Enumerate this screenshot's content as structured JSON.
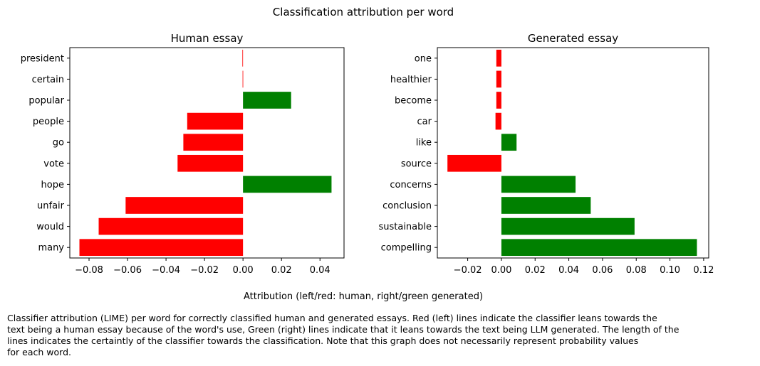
{
  "figure": {
    "suptitle": "Classification attribution per word",
    "xlabel": "Attribution (left/red: human, right/green generated)",
    "caption": "Classifier attribution (LIME) per word for correctly classified human and generated essays. Red (left) lines indicate the classifier leans towards the\ntext being a human essay because of the word's use, Green (right) lines indicate that it leans towards the text being LLM generated. The length of the\nlines indicates the certaintly of the classifier towards the classification. Note that this graph does not necessarily represent probability values\nfor each word.",
    "colors": {
      "negative": "#ff0000",
      "positive": "#008000"
    }
  },
  "chart_data": [
    {
      "type": "bar",
      "orientation": "horizontal",
      "title": "Human essay",
      "categories": [
        "president",
        "certain",
        "popular",
        "people",
        "go",
        "vote",
        "hope",
        "unfair",
        "would",
        "many"
      ],
      "values": [
        -0.0003,
        -0.0002,
        0.025,
        -0.029,
        -0.031,
        -0.034,
        0.046,
        -0.061,
        -0.075,
        -0.085
      ],
      "xlim": [
        -0.09,
        0.0525
      ],
      "xticks": [
        -0.08,
        -0.06,
        -0.04,
        -0.02,
        0.0,
        0.02,
        0.04
      ],
      "xtick_labels": [
        "−0.08",
        "−0.06",
        "−0.04",
        "−0.02",
        "0.00",
        "0.02",
        "0.04"
      ],
      "grid": false
    },
    {
      "type": "bar",
      "orientation": "horizontal",
      "title": "Generated essay",
      "categories": [
        "one",
        "healthier",
        "become",
        "car",
        "like",
        "source",
        "concerns",
        "conclusion",
        "sustainable",
        "compelling"
      ],
      "values": [
        -0.003,
        -0.003,
        -0.003,
        -0.0035,
        0.009,
        -0.032,
        0.044,
        0.053,
        0.079,
        0.116
      ],
      "xlim": [
        -0.038,
        0.123
      ],
      "xticks": [
        -0.02,
        0.0,
        0.02,
        0.04,
        0.06,
        0.08,
        0.1,
        0.12
      ],
      "xtick_labels": [
        "−0.02",
        "0.00",
        "0.02",
        "0.04",
        "0.06",
        "0.08",
        "0.10",
        "0.12"
      ],
      "grid": false
    }
  ]
}
